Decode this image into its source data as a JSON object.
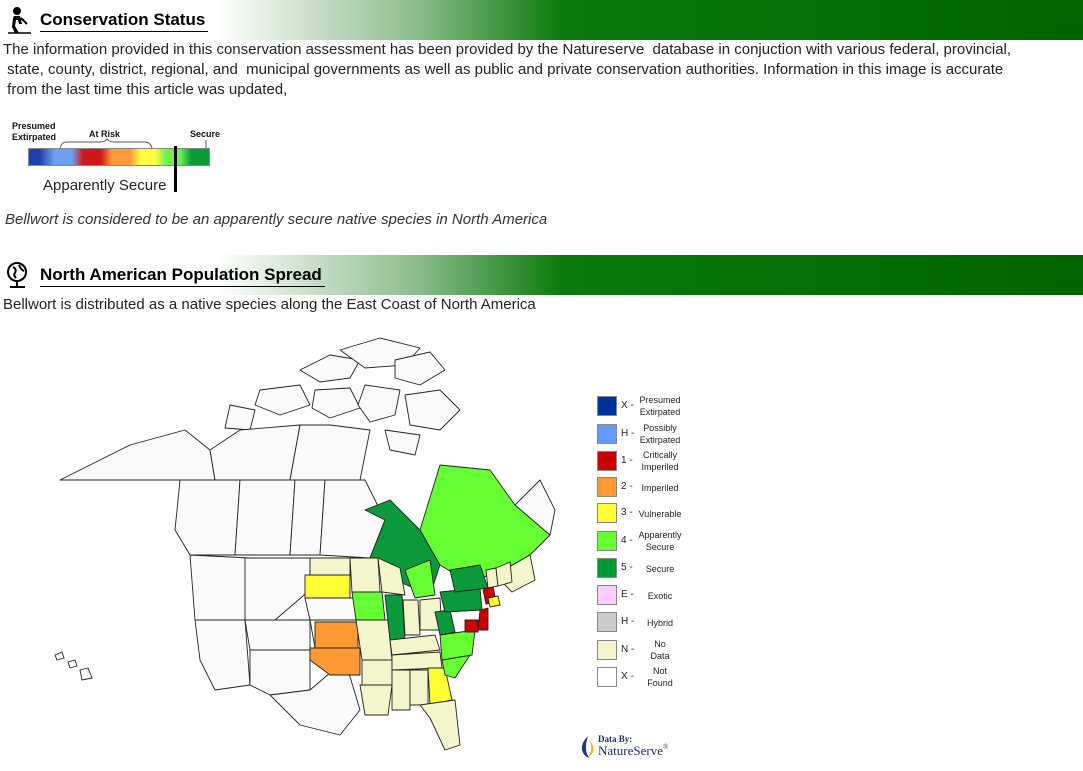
{
  "conservation": {
    "title": "Conservation Status",
    "description_lines": [
      "The information provided in this conservation assessment has been provided by the Natureserve  database in conjuction with various federal, provincial,",
      " state, county, district, regional, and  municipal governments as well as public and private conservation authorities. Information in this image is accurate",
      " from the last time this article was updated,"
    ],
    "scale": {
      "label_presumed_1": "Presumed",
      "label_presumed_2": "Extirpated",
      "label_at_risk": "At Risk",
      "label_secure": "Secure",
      "indicator_label": "Apparently Secure",
      "indicator_position_pct": 80,
      "colors": [
        "#1f3fb0",
        "#6aa0f0",
        "#d01818",
        "#ff9a3a",
        "#ffff40",
        "#70f050",
        "#0a9a3a"
      ]
    },
    "summary": "Bellwort is considered to be an apparently secure native species in North America"
  },
  "population": {
    "title": "North American Population Spread",
    "summary": "Bellwort is distributed as a native species along the East Coast of North America"
  },
  "legend": [
    {
      "code": "X -",
      "line1": "Presumed",
      "line2": "Extirpated",
      "color": "#003399"
    },
    {
      "code": "H -",
      "line1": "Possibly",
      "line2": "Extirpated",
      "color": "#6699ff"
    },
    {
      "code": "1 -",
      "line1": "Critically",
      "line2": "Imperiled",
      "color": "#cc0000"
    },
    {
      "code": "2 -",
      "line1": "Imperiled",
      "line2": "",
      "color": "#ff9933"
    },
    {
      "code": "3 -",
      "line1": "Vulnerable",
      "line2": "",
      "color": "#ffff33"
    },
    {
      "code": "4 -",
      "line1": "Apparently",
      "line2": "Secure",
      "color": "#66ff33"
    },
    {
      "code": "5 -",
      "line1": "Secure",
      "line2": "",
      "color": "#009933"
    },
    {
      "code": "E -",
      "line1": "Exotic",
      "line2": "",
      "color": "#ffccff"
    },
    {
      "code": "H -",
      "line1": "Hybrid",
      "line2": "",
      "color": "#cccccc"
    },
    {
      "code": "N -",
      "line1": "No",
      "line2": "Data",
      "color": "#f5f5cc"
    },
    {
      "code": "X -",
      "line1": "Not",
      "line2": "Found",
      "color": "#ffffff"
    }
  ],
  "credit": {
    "line1": "Data By:",
    "line2": "NatureServe",
    "trademark": "®"
  },
  "map_colors": {
    "border": "#222222",
    "unknown": "#fafafa",
    "no_data": "#f5f5cc",
    "secure": "#0a9a3a",
    "apparently_secure": "#66ff33",
    "vulnerable": "#ffff33",
    "imperiled": "#ff9933",
    "critically_imperiled": "#cc0000"
  }
}
